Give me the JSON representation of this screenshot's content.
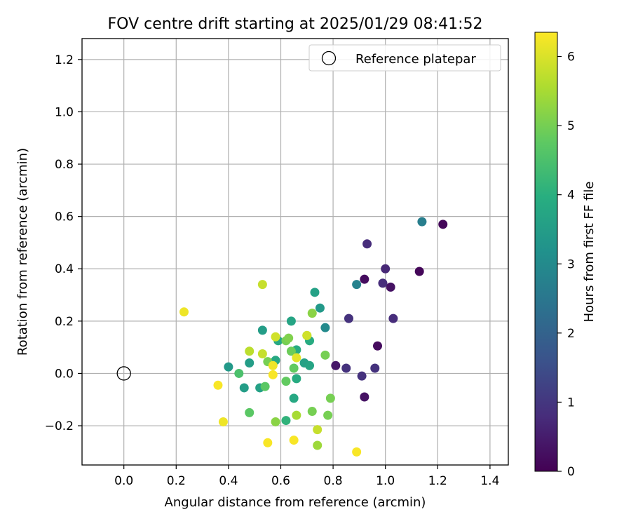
{
  "chart_data": {
    "type": "scatter",
    "title": "FOV centre drift starting at 2025/01/29 08:41:52",
    "xlabel": "Angular distance from reference (arcmin)",
    "ylabel": "Rotation from reference (arcmin)",
    "xlim": [
      -0.16,
      1.47
    ],
    "ylim": [
      -0.35,
      1.28
    ],
    "xticks": [
      0.0,
      0.2,
      0.4,
      0.6,
      0.8,
      1.0,
      1.2,
      1.4
    ],
    "xtick_labels": [
      "0.0",
      "0.2",
      "0.4",
      "0.6",
      "0.8",
      "1.0",
      "1.2",
      "1.4"
    ],
    "yticks": [
      -0.2,
      0.0,
      0.2,
      0.4,
      0.6,
      0.8,
      1.0,
      1.2
    ],
    "ytick_labels": [
      "−0.2",
      "0.0",
      "0.2",
      "0.4",
      "0.6",
      "0.8",
      "1.0",
      "1.2"
    ],
    "grid": true,
    "legend": {
      "position": "top-right",
      "entries": [
        "Reference platepar"
      ]
    },
    "reference_point": {
      "x": 0.0,
      "y": 0.0,
      "label": "Reference platepar"
    },
    "colorbar": {
      "label": "Hours from first FF file",
      "colormap": "viridis",
      "range": [
        0,
        6.35
      ],
      "ticks": [
        0,
        1,
        2,
        3,
        4,
        5,
        6
      ],
      "tick_labels": [
        "0",
        "1",
        "2",
        "3",
        "4",
        "5",
        "6"
      ]
    },
    "points": [
      {
        "x": 1.22,
        "y": 0.57,
        "h": 0.1
      },
      {
        "x": 1.13,
        "y": 0.39,
        "h": 0.1
      },
      {
        "x": 0.92,
        "y": 0.36,
        "h": 0.2
      },
      {
        "x": 1.02,
        "y": 0.33,
        "h": 0.3
      },
      {
        "x": 0.97,
        "y": 0.105,
        "h": 0.2
      },
      {
        "x": 0.92,
        "y": -0.09,
        "h": 0.3
      },
      {
        "x": 0.81,
        "y": 0.03,
        "h": 0.4
      },
      {
        "x": 0.93,
        "y": 0.495,
        "h": 0.8
      },
      {
        "x": 1.0,
        "y": 0.4,
        "h": 0.7
      },
      {
        "x": 0.99,
        "y": 0.345,
        "h": 0.8
      },
      {
        "x": 1.03,
        "y": 0.21,
        "h": 0.8
      },
      {
        "x": 0.86,
        "y": 0.21,
        "h": 0.9
      },
      {
        "x": 0.85,
        "y": 0.02,
        "h": 0.9
      },
      {
        "x": 0.96,
        "y": 0.02,
        "h": 0.9
      },
      {
        "x": 0.91,
        "y": -0.01,
        "h": 0.9
      },
      {
        "x": 0.89,
        "y": 0.34,
        "h": 2.8
      },
      {
        "x": 1.14,
        "y": 0.58,
        "h": 2.7
      },
      {
        "x": 0.77,
        "y": 0.175,
        "h": 3.0
      },
      {
        "x": 0.75,
        "y": 0.25,
        "h": 3.4
      },
      {
        "x": 0.73,
        "y": 0.31,
        "h": 3.6
      },
      {
        "x": 0.53,
        "y": 0.165,
        "h": 3.5
      },
      {
        "x": 0.64,
        "y": 0.2,
        "h": 3.7
      },
      {
        "x": 0.4,
        "y": 0.025,
        "h": 3.4
      },
      {
        "x": 0.48,
        "y": 0.04,
        "h": 3.5
      },
      {
        "x": 0.46,
        "y": -0.055,
        "h": 3.5
      },
      {
        "x": 0.52,
        "y": -0.055,
        "h": 3.6
      },
      {
        "x": 0.58,
        "y": 0.05,
        "h": 3.8
      },
      {
        "x": 0.59,
        "y": 0.125,
        "h": 3.8
      },
      {
        "x": 0.66,
        "y": 0.09,
        "h": 3.9
      },
      {
        "x": 0.69,
        "y": 0.04,
        "h": 3.6
      },
      {
        "x": 0.71,
        "y": 0.03,
        "h": 3.7
      },
      {
        "x": 0.71,
        "y": 0.125,
        "h": 3.9
      },
      {
        "x": 0.65,
        "y": -0.095,
        "h": 3.8
      },
      {
        "x": 0.66,
        "y": -0.02,
        "h": 3.9
      },
      {
        "x": 0.62,
        "y": -0.18,
        "h": 4.1
      },
      {
        "x": 0.44,
        "y": 0.0,
        "h": 4.5
      },
      {
        "x": 0.48,
        "y": -0.15,
        "h": 4.7
      },
      {
        "x": 0.54,
        "y": -0.05,
        "h": 4.7
      },
      {
        "x": 0.55,
        "y": 0.045,
        "h": 5.0
      },
      {
        "x": 0.62,
        "y": -0.03,
        "h": 4.8
      },
      {
        "x": 0.62,
        "y": 0.125,
        "h": 5.0
      },
      {
        "x": 0.63,
        "y": 0.135,
        "h": 5.1
      },
      {
        "x": 0.64,
        "y": 0.085,
        "h": 4.9
      },
      {
        "x": 0.65,
        "y": 0.02,
        "h": 4.8
      },
      {
        "x": 0.7,
        "y": 0.145,
        "h": 5.1
      },
      {
        "x": 0.72,
        "y": 0.23,
        "h": 5.2
      },
      {
        "x": 0.77,
        "y": 0.07,
        "h": 5.0
      },
      {
        "x": 0.79,
        "y": -0.095,
        "h": 5.0
      },
      {
        "x": 0.78,
        "y": -0.16,
        "h": 5.0
      },
      {
        "x": 0.72,
        "y": -0.145,
        "h": 5.0
      },
      {
        "x": 0.58,
        "y": -0.185,
        "h": 5.2
      },
      {
        "x": 0.66,
        "y": -0.16,
        "h": 5.5
      },
      {
        "x": 0.74,
        "y": -0.275,
        "h": 5.4
      },
      {
        "x": 0.74,
        "y": -0.215,
        "h": 5.8
      },
      {
        "x": 0.53,
        "y": 0.34,
        "h": 5.8
      },
      {
        "x": 0.48,
        "y": 0.085,
        "h": 5.7
      },
      {
        "x": 0.53,
        "y": 0.075,
        "h": 5.8
      },
      {
        "x": 0.58,
        "y": 0.14,
        "h": 5.9
      },
      {
        "x": 0.7,
        "y": 0.145,
        "h": 5.9
      },
      {
        "x": 0.66,
        "y": 0.06,
        "h": 6.1
      },
      {
        "x": 0.57,
        "y": 0.03,
        "h": 6.2
      },
      {
        "x": 0.57,
        "y": -0.005,
        "h": 6.3
      },
      {
        "x": 0.23,
        "y": 0.235,
        "h": 6.2
      },
      {
        "x": 0.36,
        "y": -0.045,
        "h": 6.3
      },
      {
        "x": 0.38,
        "y": -0.185,
        "h": 6.2
      },
      {
        "x": 0.55,
        "y": -0.265,
        "h": 6.3
      },
      {
        "x": 0.65,
        "y": -0.255,
        "h": 6.3
      },
      {
        "x": 0.89,
        "y": -0.3,
        "h": 6.3
      }
    ]
  }
}
